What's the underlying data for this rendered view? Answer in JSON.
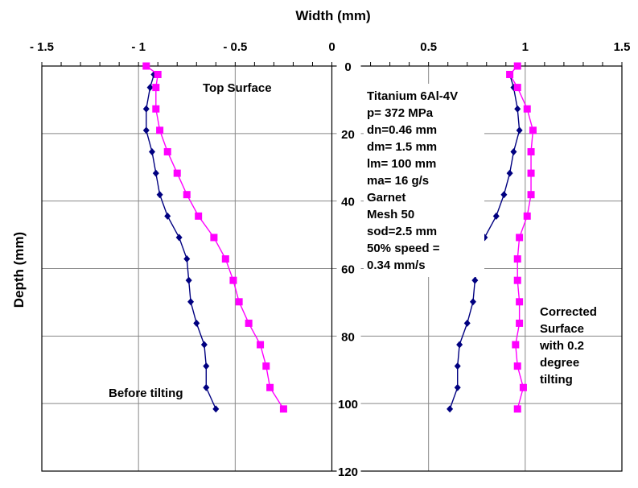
{
  "chart_data": {
    "type": "line",
    "title": "",
    "xlabel": "Width (mm)",
    "ylabel": "Depth (mm)",
    "xlim": [
      -1.5,
      1.5
    ],
    "ylim": [
      0,
      120
    ],
    "y_inverted": true,
    "x_axis_position": "top",
    "grid": true,
    "x_ticks": [
      "- 1.5",
      "- 1",
      "- 0.5",
      "0",
      "0.5",
      "1",
      "1.5"
    ],
    "x_tick_values": [
      -1.5,
      -1,
      -0.5,
      0,
      0.5,
      1,
      1.5
    ],
    "y_ticks": [
      "0",
      "20",
      "40",
      "60",
      "80",
      "100",
      "120"
    ],
    "y_tick_values": [
      0,
      20,
      40,
      60,
      80,
      100,
      120
    ],
    "series": [
      {
        "name": "Before tilting (left)",
        "color": "#000080",
        "marker": "diamond",
        "depth": [
          2.5,
          6.35,
          12.7,
          19.05,
          25.4,
          31.75,
          38.1,
          44.45,
          50.8,
          57.15,
          63.5,
          69.85,
          76.2,
          82.55,
          88.9,
          95.25,
          101.6
        ],
        "width": [
          -0.92,
          -0.94,
          -0.96,
          -0.96,
          -0.93,
          -0.91,
          -0.89,
          -0.85,
          -0.79,
          -0.75,
          -0.74,
          -0.73,
          -0.7,
          -0.66,
          -0.65,
          -0.65,
          -0.6
        ]
      },
      {
        "name": "Before tilting (right)",
        "color": "#000080",
        "marker": "diamond",
        "depth": [
          2.5,
          6.35,
          12.7,
          19.05,
          25.4,
          31.75,
          38.1,
          44.45,
          50.8,
          57.15,
          63.5,
          69.85,
          76.2,
          82.55,
          88.9,
          95.25,
          101.6
        ],
        "width": [
          0.92,
          0.94,
          0.96,
          0.97,
          0.94,
          0.92,
          0.89,
          0.85,
          0.79,
          0.76,
          0.74,
          0.73,
          0.7,
          0.66,
          0.65,
          0.65,
          0.61
        ]
      },
      {
        "name": "Corrected surface (left)",
        "color": "#ff00ff",
        "marker": "square",
        "depth": [
          0,
          2.5,
          6.35,
          12.7,
          19.05,
          25.4,
          31.75,
          38.1,
          44.45,
          50.8,
          57.15,
          63.5,
          69.85,
          76.2,
          82.55,
          88.9,
          95.25,
          101.6
        ],
        "width": [
          -0.96,
          -0.9,
          -0.91,
          -0.91,
          -0.89,
          -0.85,
          -0.8,
          -0.75,
          -0.69,
          -0.61,
          -0.55,
          -0.51,
          -0.48,
          -0.43,
          -0.37,
          -0.34,
          -0.32,
          -0.25
        ]
      },
      {
        "name": "Corrected surface (right)",
        "color": "#ff00ff",
        "marker": "square",
        "depth": [
          0,
          2.5,
          6.35,
          12.7,
          19.05,
          25.4,
          31.75,
          38.1,
          44.45,
          50.8,
          57.15,
          63.5,
          69.85,
          76.2,
          82.55,
          88.9,
          95.25,
          101.6
        ],
        "width": [
          0.96,
          0.92,
          0.96,
          1.01,
          1.04,
          1.03,
          1.03,
          1.03,
          1.01,
          0.97,
          0.96,
          0.96,
          0.97,
          0.97,
          0.95,
          0.96,
          0.99,
          0.96
        ]
      }
    ],
    "annotations": {
      "top_surface": "Top Surface",
      "before_tilting": "Before tilting",
      "corrected": [
        "Corrected",
        "Surface",
        "with 0.2",
        "degree",
        "tilting"
      ],
      "params": [
        "Titanium 6Al-4V",
        "p= 372 MPa",
        "dn=0.46 mm",
        "dm= 1.5 mm",
        "lm= 100 mm",
        "ma= 16 g/s",
        "Garnet",
        "Mesh 50",
        "sod=2.5 mm",
        "50% speed =",
        "0.34 mm/s"
      ]
    }
  }
}
